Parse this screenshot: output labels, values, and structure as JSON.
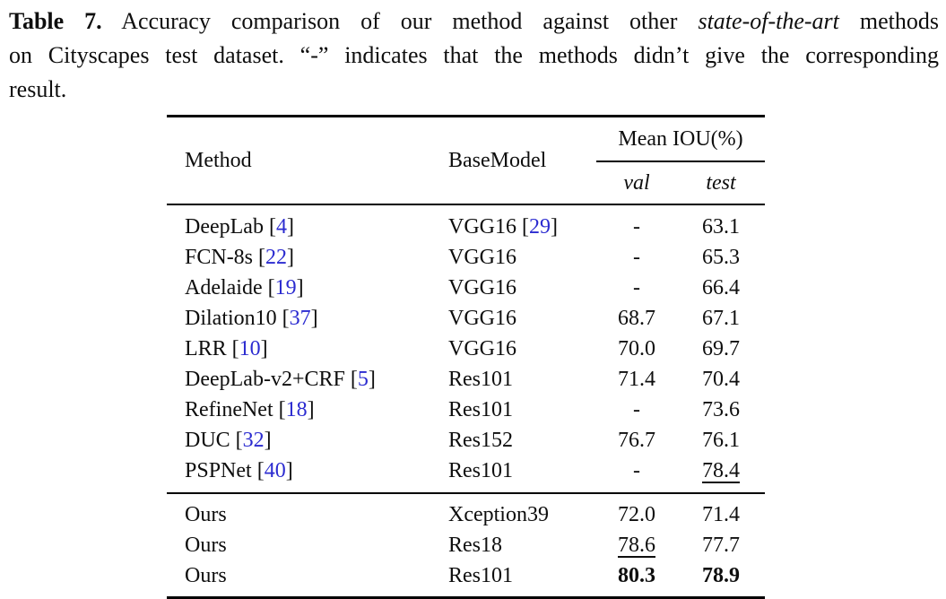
{
  "colors": {
    "citation_blue": "#2b2bd0",
    "text": "#0e0e0e",
    "background": "#ffffff"
  },
  "caption": {
    "label": "Table 7.",
    "line1_text": "Accuracy comparison of our method against other",
    "line1_italic": "state-of-the-art",
    "line1_end": "methods",
    "line2": "on Cityscapes test dataset. “-” indicates that the methods didn’t give the corresponding",
    "line3": "result."
  },
  "table": {
    "headers": {
      "method": "Method",
      "base_model": "BaseModel",
      "group": "Mean IOU(%)",
      "sub_val": "val",
      "sub_test": "test"
    },
    "rows": [
      {
        "method": "DeepLab",
        "cite": "4",
        "base": "VGG16",
        "base_cite": "29",
        "val": "-",
        "test": "63.1"
      },
      {
        "method": "FCN-8s",
        "cite": "22",
        "base": "VGG16",
        "val": "-",
        "test": "65.3"
      },
      {
        "method": "Adelaide",
        "cite": "19",
        "base": "VGG16",
        "val": "-",
        "test": "66.4"
      },
      {
        "method": "Dilation10",
        "cite": "37",
        "base": "VGG16",
        "val": "68.7",
        "test": "67.1"
      },
      {
        "method": "LRR",
        "cite": "10",
        "base": "VGG16",
        "val": "70.0",
        "test": "69.7"
      },
      {
        "method": "DeepLab-v2+CRF",
        "cite": "5",
        "base": "Res101",
        "val": "71.4",
        "test": "70.4"
      },
      {
        "method": "RefineNet",
        "cite": "18",
        "base": "Res101",
        "val": "-",
        "test": "73.6"
      },
      {
        "method": "DUC",
        "cite": "32",
        "base": "Res152",
        "val": "76.7",
        "test": "76.1"
      },
      {
        "method": "PSPNet",
        "cite": "40",
        "base": "Res101",
        "val": "-",
        "test": "78.4",
        "test_style": "underline"
      }
    ],
    "ours_rows": [
      {
        "method": "Ours",
        "base": "Xception39",
        "val": "72.0",
        "test": "71.4"
      },
      {
        "method": "Ours",
        "base": "Res18",
        "val": "78.6",
        "test": "77.7",
        "val_style": "underline"
      },
      {
        "method": "Ours",
        "base": "Res101",
        "val": "80.3",
        "test": "78.9",
        "val_style": "bold",
        "test_style": "bold"
      }
    ]
  }
}
